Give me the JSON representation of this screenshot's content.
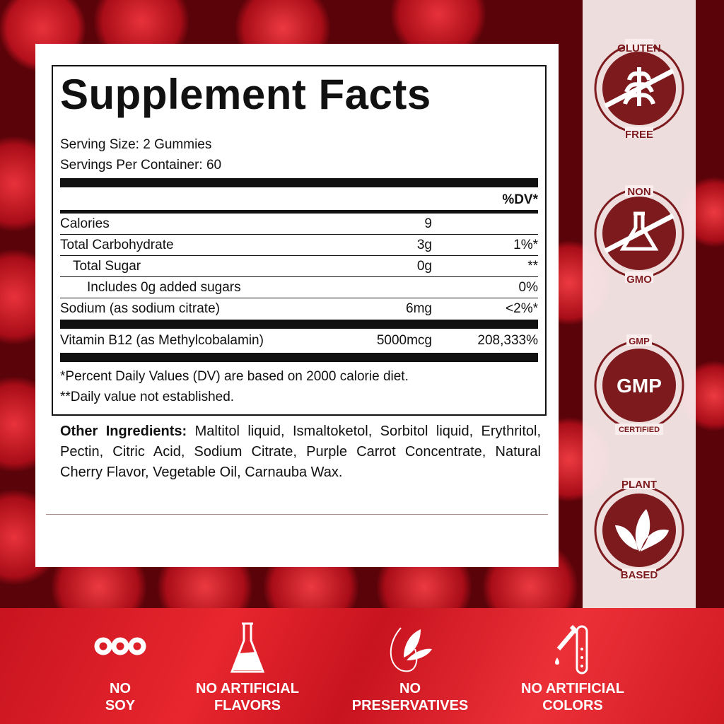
{
  "facts": {
    "title": "Supplement Facts",
    "serving_size": "Serving Size: 2 Gummies",
    "servings_per_container": "Servings Per Container: 60",
    "dv_header": "%DV*",
    "rows": [
      {
        "name": "Calories",
        "amount": "9",
        "dv": ""
      },
      {
        "name": "Total Carbohydrate",
        "amount": "3g",
        "dv": "1%*"
      },
      {
        "name": "Total Sugar",
        "amount": "0g",
        "dv": "**"
      },
      {
        "name": "Includes 0g added sugars",
        "amount": "",
        "dv": "0%"
      },
      {
        "name": "Sodium (as sodium citrate)",
        "amount": "6mg",
        "dv": "<2%*"
      },
      {
        "name": "Vitamin B12 (as Methylcobalamin)",
        "amount": "5000mcg",
        "dv": "208,333%"
      }
    ],
    "footnote1": "*Percent Daily Values (DV) are based on 2000 calorie diet.",
    "footnote2": "**Daily value not established."
  },
  "ingredients": {
    "label": "Other Ingredients:",
    "text": " Maltitol liquid, Ismaltoketol, Sorbitol liquid, Erythritol, Pectin, Citric Acid, Sodium Citrate, Purple Carrot Concentrate, Natural Cherry Flavor, Vegetable Oil, Carnauba Wax."
  },
  "badges": [
    {
      "top": "GLUTEN",
      "bottom": "FREE",
      "icon": "wheat-icon"
    },
    {
      "top": "NON",
      "bottom": "GMO",
      "icon": "flask-icon"
    },
    {
      "top": "GMP",
      "bottom": "CERTIFIED",
      "center": "GMP"
    },
    {
      "top": "PLANT",
      "bottom": "BASED",
      "icon": "leaves-icon"
    }
  ],
  "features": [
    {
      "l1": "NO",
      "l2": "SOY",
      "icon": "soybean-icon"
    },
    {
      "l1": "NO ARTIFICIAL",
      "l2": "FLAVORS",
      "icon": "flask-icon"
    },
    {
      "l1": "NO",
      "l2": "PRESERVATIVES",
      "icon": "leaf-drop-icon"
    },
    {
      "l1": "NO ARTIFICIAL",
      "l2": "COLORS",
      "icon": "dropper-tube-icon"
    }
  ],
  "colors": {
    "badge": "#7d1a1e",
    "band": "#d81c24"
  }
}
